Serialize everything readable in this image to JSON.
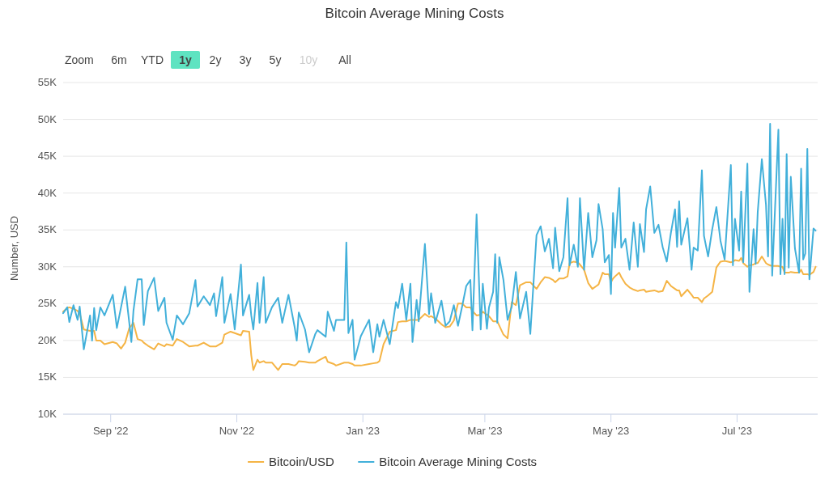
{
  "chart_data": {
    "type": "line",
    "title": "Bitcoin Average Mining Costs",
    "ylabel": "Number, USD",
    "annotations": [
      "Zoom",
      "6m",
      "YTD",
      "1y",
      "2y",
      "3y",
      "5y",
      "10y",
      "All"
    ],
    "x": [
      "2022-08-09",
      "2022-08-11",
      "2022-08-12",
      "2022-08-14",
      "2022-08-16",
      "2022-08-17",
      "2022-08-19",
      "2022-08-22",
      "2022-08-23",
      "2022-08-24",
      "2022-08-25",
      "2022-08-27",
      "2022-08-29",
      "2022-09-02",
      "2022-09-04",
      "2022-09-06",
      "2022-09-08",
      "2022-09-10",
      "2022-09-11",
      "2022-09-12",
      "2022-09-14",
      "2022-09-16",
      "2022-09-17",
      "2022-09-19",
      "2022-09-22",
      "2022-09-24",
      "2022-09-27",
      "2022-09-28",
      "2022-10-01",
      "2022-10-03",
      "2022-10-06",
      "2022-10-09",
      "2022-10-12",
      "2022-10-13",
      "2022-10-16",
      "2022-10-19",
      "2022-10-21",
      "2022-10-22",
      "2022-10-25",
      "2022-10-26",
      "2022-10-29",
      "2022-10-31",
      "2022-11-03",
      "2022-11-04",
      "2022-11-07",
      "2022-11-08",
      "2022-11-09",
      "2022-11-11",
      "2022-11-12",
      "2022-11-14",
      "2022-11-15",
      "2022-11-18",
      "2022-11-21",
      "2022-11-23",
      "2022-11-26",
      "2022-11-29",
      "2022-11-30",
      "2022-12-01",
      "2022-12-04",
      "2022-12-06",
      "2022-12-09",
      "2022-12-10",
      "2022-12-14",
      "2022-12-15",
      "2022-12-18",
      "2022-12-19",
      "2022-12-23",
      "2022-12-24",
      "2022-12-25",
      "2022-12-27",
      "2022-12-28",
      "2022-12-31",
      "2023-01-04",
      "2023-01-06",
      "2023-01-08",
      "2023-01-09",
      "2023-01-11",
      "2023-01-14",
      "2023-01-17",
      "2023-01-18",
      "2023-01-20",
      "2023-01-22",
      "2023-01-24",
      "2023-01-25",
      "2023-01-27",
      "2023-01-28",
      "2023-01-31",
      "2023-02-02",
      "2023-02-03",
      "2023-02-05",
      "2023-02-08",
      "2023-02-10",
      "2023-02-12",
      "2023-02-14",
      "2023-02-16",
      "2023-02-18",
      "2023-02-20",
      "2023-02-22",
      "2023-02-23",
      "2023-02-25",
      "2023-02-27",
      "2023-02-28",
      "2023-03-02",
      "2023-03-03",
      "2023-03-05",
      "2023-03-06",
      "2023-03-07",
      "2023-03-08",
      "2023-03-10",
      "2023-03-12",
      "2023-03-14",
      "2023-03-16",
      "2023-03-18",
      "2023-03-21",
      "2023-03-23",
      "2023-03-26",
      "2023-03-28",
      "2023-03-30",
      "2023-04-01",
      "2023-04-03",
      "2023-04-04",
      "2023-04-06",
      "2023-04-08",
      "2023-04-10",
      "2023-04-11",
      "2023-04-13",
      "2023-04-15",
      "2023-04-16",
      "2023-04-18",
      "2023-04-20",
      "2023-04-22",
      "2023-04-24",
      "2023-04-25",
      "2023-04-27",
      "2023-04-28",
      "2023-04-30",
      "2023-05-01",
      "2023-05-02",
      "2023-05-03",
      "2023-05-05",
      "2023-05-06",
      "2023-05-08",
      "2023-05-10",
      "2023-05-12",
      "2023-05-14",
      "2023-05-15",
      "2023-05-17",
      "2023-05-18",
      "2023-05-20",
      "2023-05-22",
      "2023-05-24",
      "2023-05-26",
      "2023-05-28",
      "2023-05-30",
      "2023-06-01",
      "2023-06-02",
      "2023-06-03",
      "2023-06-04",
      "2023-06-07",
      "2023-06-09",
      "2023-06-10",
      "2023-06-12",
      "2023-06-14",
      "2023-06-15",
      "2023-06-17",
      "2023-06-19",
      "2023-06-21",
      "2023-06-23",
      "2023-06-25",
      "2023-06-28",
      "2023-06-29",
      "2023-06-30",
      "2023-07-02",
      "2023-07-03",
      "2023-07-04",
      "2023-07-06",
      "2023-07-07",
      "2023-07-09",
      "2023-07-10",
      "2023-07-11",
      "2023-07-13",
      "2023-07-15",
      "2023-07-16",
      "2023-07-17",
      "2023-07-18",
      "2023-07-21",
      "2023-07-22",
      "2023-07-23",
      "2023-07-24",
      "2023-07-25",
      "2023-07-26",
      "2023-07-27",
      "2023-07-29",
      "2023-07-31",
      "2023-08-01",
      "2023-08-02",
      "2023-08-03",
      "2023-08-04",
      "2023-08-05",
      "2023-08-07",
      "2023-08-08"
    ],
    "series": [
      {
        "name": "Bitcoin/USD",
        "color": "#f5b445",
        "values": [
          23.9,
          24.4,
          24.5,
          24.3,
          24.0,
          23.7,
          21.5,
          21.3,
          21.3,
          21.3,
          20.0,
          20.0,
          19.5,
          19.8,
          19.6,
          18.9,
          19.7,
          21.7,
          22.0,
          22.4,
          20.2,
          20.0,
          19.7,
          19.3,
          18.8,
          19.6,
          19.2,
          19.5,
          19.3,
          20.2,
          19.8,
          19.2,
          19.3,
          19.3,
          19.7,
          19.2,
          19.2,
          19.2,
          19.7,
          20.8,
          21.2,
          21.0,
          20.7,
          21.3,
          21.2,
          18.0,
          16.0,
          17.4,
          17.0,
          17.2,
          17.0,
          17.0,
          16.0,
          16.8,
          16.8,
          16.6,
          16.8,
          17.2,
          17.1,
          17.0,
          17.0,
          17.2,
          17.8,
          17.1,
          16.8,
          16.6,
          17.0,
          17.0,
          17.0,
          16.8,
          16.6,
          16.6,
          16.8,
          16.9,
          17.0,
          17.2,
          19.5,
          21.2,
          21.4,
          22.5,
          22.6,
          22.6,
          22.8,
          22.8,
          22.8,
          22.8,
          23.6,
          23.2,
          23.3,
          23.0,
          22.2,
          21.8,
          21.9,
          22.7,
          25.0,
          25.0,
          24.5,
          24.5,
          24.0,
          23.4,
          23.5,
          23.9,
          23.5,
          23.3,
          22.6,
          22.6,
          22.6,
          22.0,
          20.8,
          20.3,
          25.2,
          24.8,
          27.5,
          27.9,
          27.9,
          27.0,
          27.9,
          28.6,
          28.5,
          28.2,
          27.9,
          28.4,
          28.4,
          28.7,
          30.5,
          30.7,
          30.6,
          30.3,
          29.6,
          27.8,
          27.0,
          27.4,
          27.6,
          29.2,
          29.0,
          29.0,
          27.9,
          28.4,
          28.7,
          29.2,
          28.6,
          27.7,
          27.2,
          26.9,
          26.7,
          26.8,
          26.9,
          26.6,
          26.7,
          26.8,
          26.6,
          26.7,
          28.1,
          27.4,
          27.0,
          26.8,
          26.8,
          26.0,
          26.9,
          26.2,
          25.8,
          25.8,
          25.2,
          25.7,
          26.1,
          26.6,
          29.9,
          30.7,
          30.8,
          30.6,
          30.7,
          30.9,
          30.8,
          31.2,
          30.5,
          30.0,
          30.2,
          30.3,
          30.5,
          30.5,
          31.4,
          30.5,
          30.3,
          30.2,
          30.1,
          30.1,
          30.0,
          30.0,
          29.2,
          29.2,
          29.2,
          29.3,
          29.2,
          29.2,
          29.6,
          29.0,
          29.0,
          29.0,
          28.9,
          29.3,
          30.0
        ]
      },
      {
        "name": "Bitcoin Average Mining Costs",
        "color": "#42b0da",
        "values": [
          23.7,
          24.5,
          22.5,
          24.8,
          22.8,
          24.6,
          18.8,
          23.4,
          20.0,
          24.4,
          21.4,
          24.5,
          23.4,
          26.2,
          21.7,
          24.5,
          27.3,
          22.4,
          19.8,
          24.0,
          28.3,
          28.3,
          22.1,
          26.7,
          28.5,
          24.0,
          25.8,
          22.4,
          20.1,
          23.4,
          22.2,
          23.7,
          28.2,
          24.6,
          26.0,
          24.8,
          26.4,
          23.3,
          28.6,
          22.4,
          26.3,
          21.5,
          30.3,
          23.4,
          26.2,
          23.4,
          21.5,
          27.8,
          22.4,
          28.6,
          22.4,
          24.5,
          25.8,
          22.4,
          26.2,
          21.8,
          20.0,
          23.8,
          21.5,
          18.4,
          20.9,
          21.4,
          20.5,
          23.9,
          21.3,
          22.8,
          22.8,
          33.3,
          21.0,
          22.8,
          17.4,
          20.6,
          22.8,
          18.4,
          22.2,
          20.5,
          22.8,
          19.5,
          25.2,
          24.4,
          27.7,
          22.8,
          27.7,
          19.8,
          25.5,
          22.6,
          33.1,
          23.6,
          26.4,
          22.4,
          25.4,
          22.0,
          22.6,
          24.8,
          22.0,
          24.6,
          27.4,
          28.2,
          21.4,
          37.1,
          21.5,
          27.7,
          21.6,
          24.5,
          26.6,
          31.7,
          22.4,
          31.3,
          28.2,
          22.8,
          24.6,
          29.3,
          23.0,
          26.6,
          20.9,
          34.3,
          35.5,
          32.1,
          33.8,
          29.8,
          35.3,
          29.4,
          31.3,
          39.3,
          30.2,
          33.0,
          30.0,
          39.3,
          29.6,
          37.3,
          31.3,
          33.6,
          38.5,
          35.1,
          30.6,
          31.6,
          26.3,
          37.3,
          32.6,
          40.7,
          32.6,
          33.8,
          29.6,
          36.0,
          30.0,
          35.8,
          32.0,
          37.8,
          40.9,
          34.6,
          35.7,
          32.7,
          30.7,
          34.6,
          37.8,
          32.7,
          38.9,
          33.0,
          36.6,
          29.6,
          32.6,
          32.2,
          43.1,
          34.2,
          31.4,
          35.1,
          38.1,
          33.5,
          31.0,
          43.8,
          30.2,
          36.5,
          32.2,
          40.2,
          30.6,
          44.0,
          26.6,
          35.1,
          30.4,
          37.4,
          44.6,
          38.4,
          31.4,
          49.4,
          28.8,
          48.6,
          29.0,
          36.5,
          29.0,
          45.3,
          29.9,
          42.2,
          32.5,
          29.2,
          43.3,
          31.0,
          31.8,
          46.0,
          28.3,
          35.2,
          34.9
        ]
      }
    ],
    "xlim": [
      "2022-08-09",
      "2023-08-09"
    ],
    "xticks": [
      {
        "value": "2022-09-01",
        "label": "Sep '22"
      },
      {
        "value": "2022-11-01",
        "label": "Nov '22"
      },
      {
        "value": "2023-01-01",
        "label": "Jan '23"
      },
      {
        "value": "2023-03-01",
        "label": "Mar '23"
      },
      {
        "value": "2023-05-01",
        "label": "May '23"
      },
      {
        "value": "2023-07-01",
        "label": "Jul '23"
      }
    ],
    "ylim": [
      10,
      55
    ],
    "yticks": [
      {
        "value": 10,
        "label": "10K"
      },
      {
        "value": 15,
        "label": "15K"
      },
      {
        "value": 20,
        "label": "20K"
      },
      {
        "value": 25,
        "label": "25K"
      },
      {
        "value": 30,
        "label": "30K"
      },
      {
        "value": 35,
        "label": "35K"
      },
      {
        "value": 40,
        "label": "40K"
      },
      {
        "value": 45,
        "label": "45K"
      },
      {
        "value": 50,
        "label": "50K"
      },
      {
        "value": 55,
        "label": "55K"
      }
    ],
    "grid": "y",
    "legend": "bottom",
    "marker": "none",
    "line_style": "solid"
  }
}
